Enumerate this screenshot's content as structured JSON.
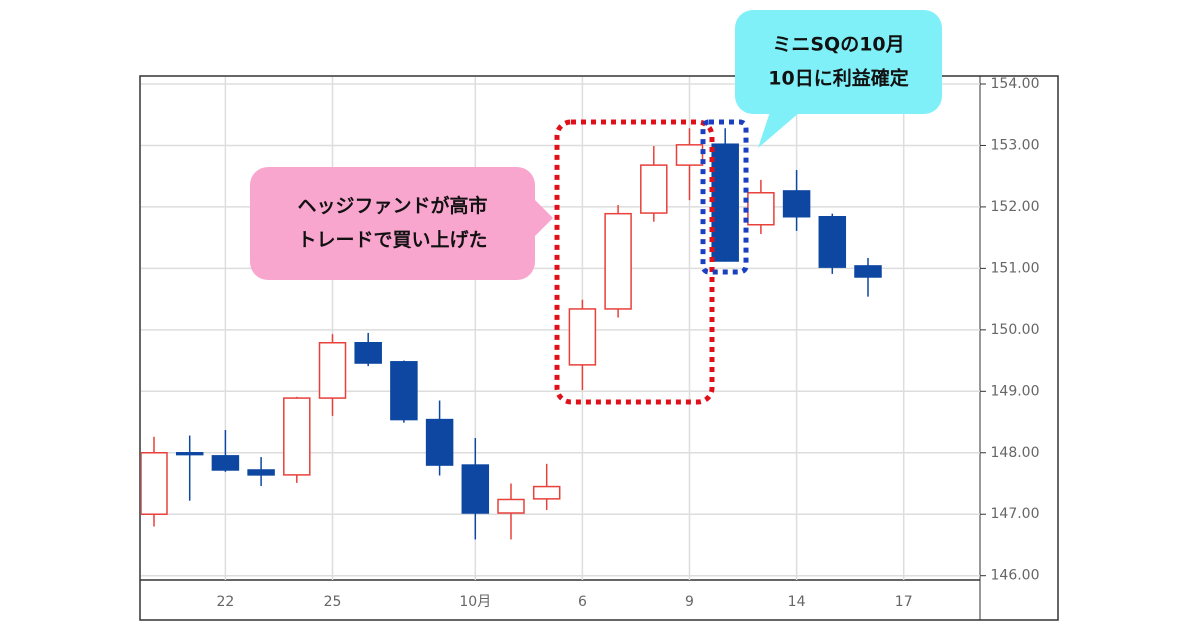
{
  "chart_data": {
    "type": "candlestick",
    "categories": [
      null,
      null,
      "22",
      null,
      null,
      "25",
      null,
      null,
      null,
      "10月",
      null,
      null,
      "6",
      null,
      null,
      "9",
      null,
      null,
      "14",
      null,
      null,
      "17"
    ],
    "open": [
      147.0,
      148.0,
      147.95,
      147.72,
      147.64,
      148.89,
      149.79,
      149.48,
      148.54,
      147.8,
      147.02,
      147.25,
      149.43,
      150.34,
      151.9,
      152.68,
      153.02,
      151.71,
      152.26,
      151.84,
      151.04,
      null
    ],
    "high": [
      148.26,
      148.28,
      148.37,
      147.93,
      148.91,
      149.93,
      149.95,
      149.5,
      148.85,
      148.24,
      147.5,
      147.82,
      150.49,
      152.03,
      152.99,
      153.28,
      153.28,
      152.44,
      152.6,
      151.89,
      151.17,
      null
    ],
    "low": [
      146.8,
      147.22,
      147.69,
      147.46,
      147.51,
      148.6,
      149.41,
      148.49,
      147.63,
      146.59,
      146.59,
      147.07,
      149.02,
      150.2,
      151.76,
      152.11,
      151.11,
      151.56,
      151.61,
      150.91,
      150.54,
      null
    ],
    "close": [
      148.0,
      147.97,
      147.72,
      147.64,
      148.89,
      149.79,
      149.46,
      148.54,
      147.8,
      147.02,
      147.24,
      147.45,
      150.34,
      151.89,
      152.68,
      153.01,
      151.12,
      152.23,
      151.84,
      151.02,
      150.86,
      null
    ],
    "up_color": "#e8403a",
    "down_color": "#0d47a1",
    "ylim": [
      145.93,
      154.13
    ],
    "yticks": [
      {
        "value": 146,
        "label": "146.00"
      },
      {
        "value": 147,
        "label": "147.00"
      },
      {
        "value": 148,
        "label": "148.00"
      },
      {
        "value": 149,
        "label": "149.00"
      },
      {
        "value": 150,
        "label": "150.00"
      },
      {
        "value": 151,
        "label": "151.00"
      },
      {
        "value": 152,
        "label": "152.00"
      },
      {
        "value": 153,
        "label": "153.00"
      },
      {
        "value": 154,
        "label": "154.00"
      }
    ],
    "grid": true,
    "annotations": [
      {
        "lines": [
          "ヘッジファンドが高市",
          "トレードで買い上げた"
        ],
        "color": "#f9a6cf"
      },
      {
        "lines": [
          "ミニSQの10月",
          "10日に利益確定"
        ],
        "color": "#7ff0f8"
      }
    ]
  }
}
